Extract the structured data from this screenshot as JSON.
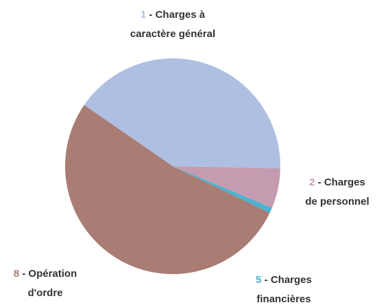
{
  "chart_data": {
    "type": "pie",
    "codes": [
      "1",
      "2",
      "5",
      "8"
    ],
    "label_lines": [
      [
        "- Charges à",
        "caractère général"
      ],
      [
        "- Charges",
        "de personnel"
      ],
      [
        "- Charges",
        "financières"
      ],
      [
        "- Opération",
        "d'ordre"
      ]
    ],
    "values": [
      40.7,
      6.0,
      0.8,
      52.5
    ],
    "colors": [
      "#aebfe2",
      "#c59bb0",
      "#4bb3d0",
      "#a97c74"
    ]
  }
}
